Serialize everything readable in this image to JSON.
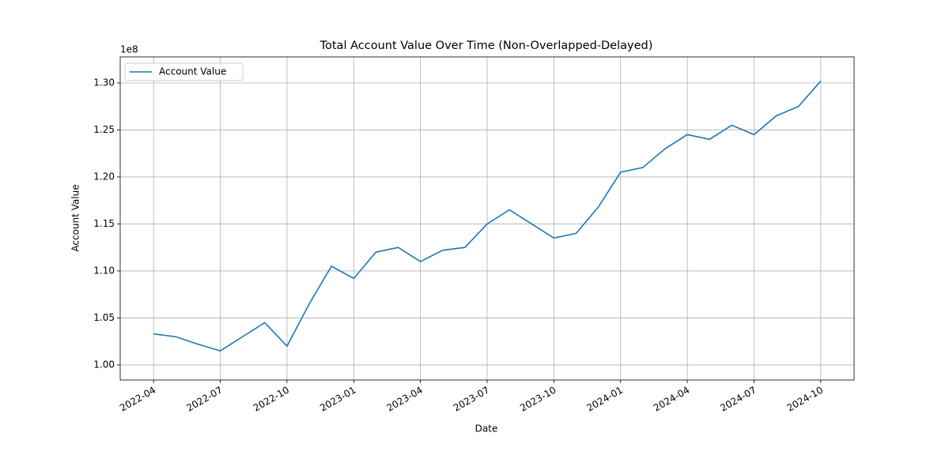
{
  "chart_data": {
    "type": "line",
    "title": "Total Account Value Over Time (Non-Overlapped-Delayed)",
    "x_label": "Date",
    "y_label": "Account Value",
    "y_offset_text": "1e8",
    "x": [
      "2022-04",
      "2022-05",
      "2022-06",
      "2022-07",
      "2022-08",
      "2022-09",
      "2022-10",
      "2022-11",
      "2022-12",
      "2023-01",
      "2023-02",
      "2023-03",
      "2023-04",
      "2023-05",
      "2023-06",
      "2023-07",
      "2023-08",
      "2023-09",
      "2023-10",
      "2023-11",
      "2023-12",
      "2024-01",
      "2024-02",
      "2024-03",
      "2024-04",
      "2024-05",
      "2024-06",
      "2024-07",
      "2024-08",
      "2024-09",
      "2024-10"
    ],
    "series": [
      {
        "name": "Account Value",
        "color": "#1f77b4",
        "values": [
          103300000,
          103000000,
          102200000,
          101500000,
          103000000,
          104500000,
          102000000,
          106500000,
          110500000,
          109200000,
          112000000,
          112500000,
          111000000,
          112200000,
          112500000,
          115000000,
          116500000,
          115000000,
          113500000,
          114000000,
          116800000,
          120500000,
          121000000,
          123000000,
          124500000,
          124000000,
          125500000,
          124500000,
          126500000,
          127500000,
          130200000
        ]
      }
    ],
    "ylim": [
      98400000,
      132770000
    ],
    "yticks": [
      {
        "value": 100000000,
        "label": "1.00"
      },
      {
        "value": 105000000,
        "label": "1.05"
      },
      {
        "value": 110000000,
        "label": "1.10"
      },
      {
        "value": 115000000,
        "label": "1.15"
      },
      {
        "value": 120000000,
        "label": "1.20"
      },
      {
        "value": 125000000,
        "label": "1.25"
      },
      {
        "value": 130000000,
        "label": "1.30"
      }
    ],
    "xticks": [
      "2022-04",
      "2022-07",
      "2022-10",
      "2023-01",
      "2023-04",
      "2023-07",
      "2023-10",
      "2024-01",
      "2024-04",
      "2024-07",
      "2024-10"
    ],
    "grid": true,
    "legend": "upper left"
  }
}
